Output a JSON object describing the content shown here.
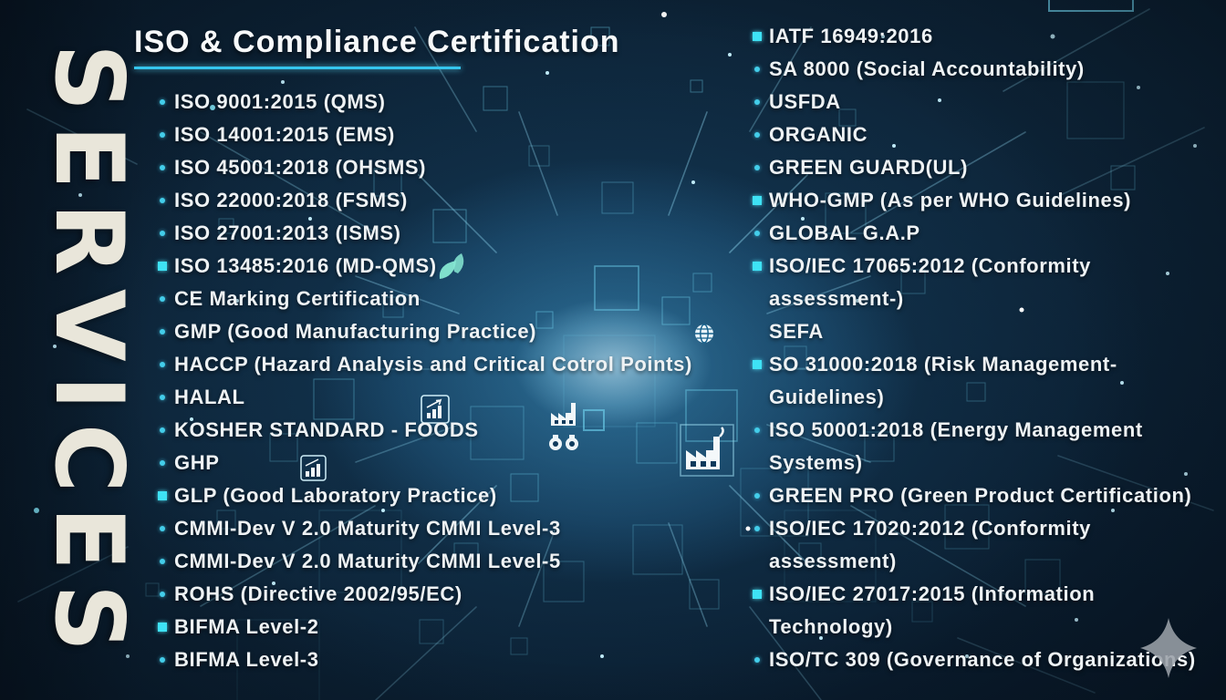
{
  "slide": {
    "vertical_banner": "SERVICES",
    "title": "ISO & Compliance Certification"
  },
  "colors": {
    "background_navy": "#0c2134",
    "accent_cyan": "#35c6ee",
    "list_text": "#eef2f4",
    "banner_text": "#e9e6da",
    "watermark_gray": "#9aa1a8"
  },
  "left_column": {
    "items": [
      {
        "bullet": "dot",
        "lines": [
          "ISO 9001:2015 (QMS)"
        ]
      },
      {
        "bullet": "dot",
        "lines": [
          "ISO 14001:2015 (EMS)"
        ]
      },
      {
        "bullet": "dot",
        "lines": [
          "ISO 45001:2018 (OHSMS)"
        ]
      },
      {
        "bullet": "dot",
        "lines": [
          "ISO 22000:2018 (FSMS)"
        ]
      },
      {
        "bullet": "dot",
        "lines": [
          "ISO 27001:2013 (ISMS)"
        ]
      },
      {
        "bullet": "square",
        "lines": [
          "ISO 13485:2016 (MD-QMS)"
        ]
      },
      {
        "bullet": "dot",
        "lines": [
          "CE Marking Certification"
        ]
      },
      {
        "bullet": "dot",
        "lines": [
          "GMP (Good Manufacturing Practice)"
        ]
      },
      {
        "bullet": "dot",
        "lines": [
          "HACCP (Hazard Analysis and Critical Cotrol Points)"
        ]
      },
      {
        "bullet": "dot",
        "lines": [
          "HALAL"
        ]
      },
      {
        "bullet": "dot",
        "lines": [
          "KOSHER STANDARD - FOODS"
        ]
      },
      {
        "bullet": "dot",
        "lines": [
          "GHP"
        ]
      },
      {
        "bullet": "square",
        "lines": [
          "GLP (Good Laboratory Practice)"
        ]
      },
      {
        "bullet": "dot",
        "lines": [
          "CMMI-Dev V 2.0 Maturity CMMI Level-3"
        ]
      },
      {
        "bullet": "dot",
        "lines": [
          "CMMI-Dev V 2.0 Maturity CMMI Level-5"
        ]
      },
      {
        "bullet": "dot",
        "lines": [
          "ROHS (Directive 2002/95/EC)"
        ]
      },
      {
        "bullet": "square",
        "lines": [
          "BIFMA Level-2"
        ]
      },
      {
        "bullet": "dot",
        "lines": [
          "BIFMA Level-3"
        ]
      }
    ]
  },
  "right_column": {
    "items": [
      {
        "bullet": "square",
        "lines": [
          "IATF 16949:2016"
        ]
      },
      {
        "bullet": "dot",
        "lines": [
          "SA 8000 (Social Accountability)"
        ]
      },
      {
        "bullet": "dot",
        "lines": [
          "USFDA"
        ]
      },
      {
        "bullet": "dot",
        "lines": [
          "ORGANIC"
        ]
      },
      {
        "bullet": "dot",
        "lines": [
          "GREEN GUARD(UL)"
        ]
      },
      {
        "bullet": "square",
        "lines": [
          "WHO-GMP (As per WHO Guidelines)"
        ]
      },
      {
        "bullet": "dot",
        "lines": [
          "GLOBAL G.A.P"
        ]
      },
      {
        "bullet": "square",
        "lines": [
          "ISO/IEC 17065:2012 (Conformity",
          "assessment-)"
        ]
      },
      {
        "bullet": "none",
        "lines": [
          "SEFA"
        ]
      },
      {
        "bullet": "square",
        "lines": [
          "SO 31000:2018 (Risk Management-",
          "Guidelines)"
        ]
      },
      {
        "bullet": "dot",
        "lines": [
          "ISO 50001:2018 (Energy Management",
          "Systems)"
        ]
      },
      {
        "bullet": "dot",
        "lines": [
          "GREEN PRO (Green Product Certification)"
        ]
      },
      {
        "bullet": "dot",
        "lines": [
          "ISO/IEC 17020:2012 (Conformity",
          "assessment)"
        ]
      },
      {
        "bullet": "square",
        "lines": [
          "ISO/IEC 27017:2015 (Information",
          "Technology)"
        ]
      },
      {
        "bullet": "dot",
        "lines": [
          "ISO/TC 309 (Governance of Organizations)"
        ]
      }
    ]
  },
  "icons": [
    "leaf-icon",
    "globe-icon",
    "factory-icon",
    "binoculars-icon",
    "bar-chart-box-icon",
    "sparkle-watermark-icon"
  ]
}
